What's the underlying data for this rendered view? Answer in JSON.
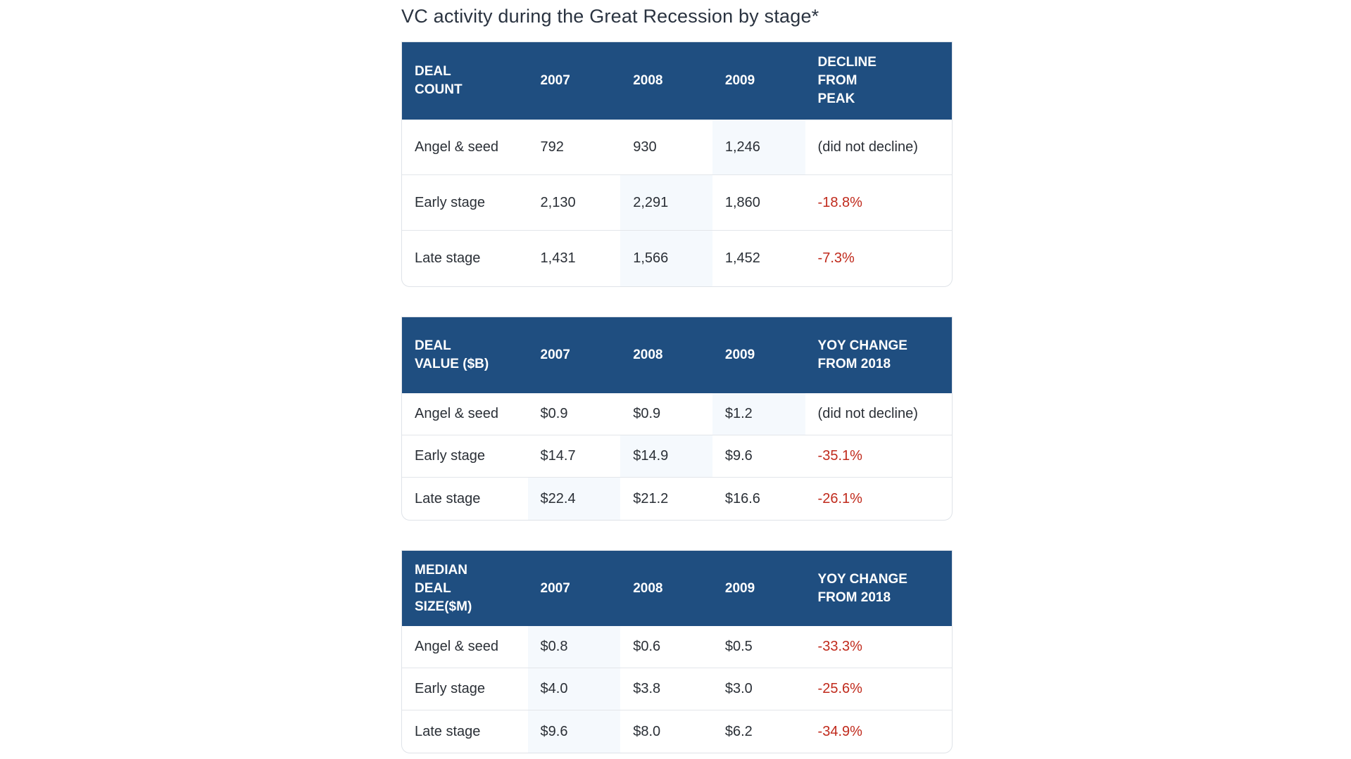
{
  "title": "VC activity during the Great Recession by stage*",
  "colors": {
    "header": "#1f4e80",
    "negative": "#c02a1c",
    "highlight": "#f5f9fd"
  },
  "tables": [
    {
      "headers": [
        "DEAL COUNT",
        "2007",
        "2008",
        "2009",
        "DECLINE FROM PEAK"
      ],
      "rows": [
        [
          "Angel & seed",
          "792",
          "930",
          "1,246",
          "(did not decline)"
        ],
        [
          "Early stage",
          "2,130",
          "2,291",
          "1,860",
          "-18.8%"
        ],
        [
          "Late stage",
          "1,431",
          "1,566",
          "1,452",
          "-7.3%"
        ]
      ],
      "highlight_col": [
        3,
        2,
        2
      ]
    },
    {
      "headers": [
        "DEAL VALUE ($B)",
        "2007",
        "2008",
        "2009",
        "YOY CHANGE FROM 2018"
      ],
      "rows": [
        [
          "Angel & seed",
          "$0.9",
          "$0.9",
          "$1.2",
          "(did not decline)"
        ],
        [
          "Early stage",
          "$14.7",
          "$14.9",
          "$9.6",
          "-35.1%"
        ],
        [
          "Late stage",
          "$22.4",
          "$21.2",
          "$16.6",
          "-26.1%"
        ]
      ],
      "highlight_col": [
        3,
        2,
        1
      ]
    },
    {
      "headers": [
        "MEDIAN DEAL SIZE($M)",
        "2007",
        "2008",
        "2009",
        "YOY CHANGE FROM 2018"
      ],
      "rows": [
        [
          "Angel & seed",
          "$0.8",
          "$0.6",
          "$0.5",
          "-33.3%"
        ],
        [
          "Early stage",
          "$4.0",
          "$3.8",
          "$3.0",
          "-25.6%"
        ],
        [
          "Late stage",
          "$9.6",
          "$8.0",
          "$6.2",
          "-34.9%"
        ]
      ],
      "highlight_col": [
        1,
        1,
        1
      ]
    }
  ]
}
